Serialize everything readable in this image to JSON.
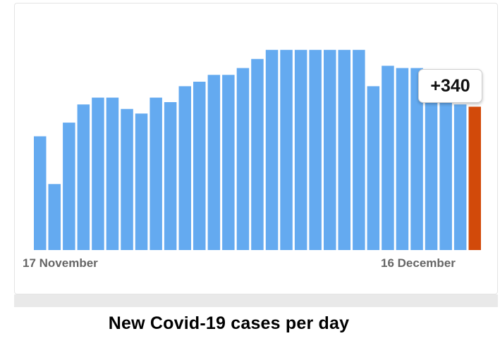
{
  "chart_data": {
    "type": "bar",
    "title": "",
    "xlabel": "",
    "ylabel": "",
    "x_tick_labels": [
      "17 November",
      "16 December"
    ],
    "values": [
      50,
      29,
      56,
      64,
      67,
      67,
      62,
      60,
      67,
      65,
      72,
      74,
      77,
      77,
      80,
      84,
      88,
      88,
      88,
      88,
      88,
      88,
      88,
      72,
      81,
      80,
      80,
      74,
      69,
      64,
      63
    ],
    "highlight_index": 30,
    "highlight_label": "+340",
    "ylim": [
      0,
      100
    ],
    "grid": false,
    "colors": {
      "bar": "#64aaf0",
      "highlight": "#d24a0a"
    }
  },
  "caption": "New Covid-19 cases per day"
}
